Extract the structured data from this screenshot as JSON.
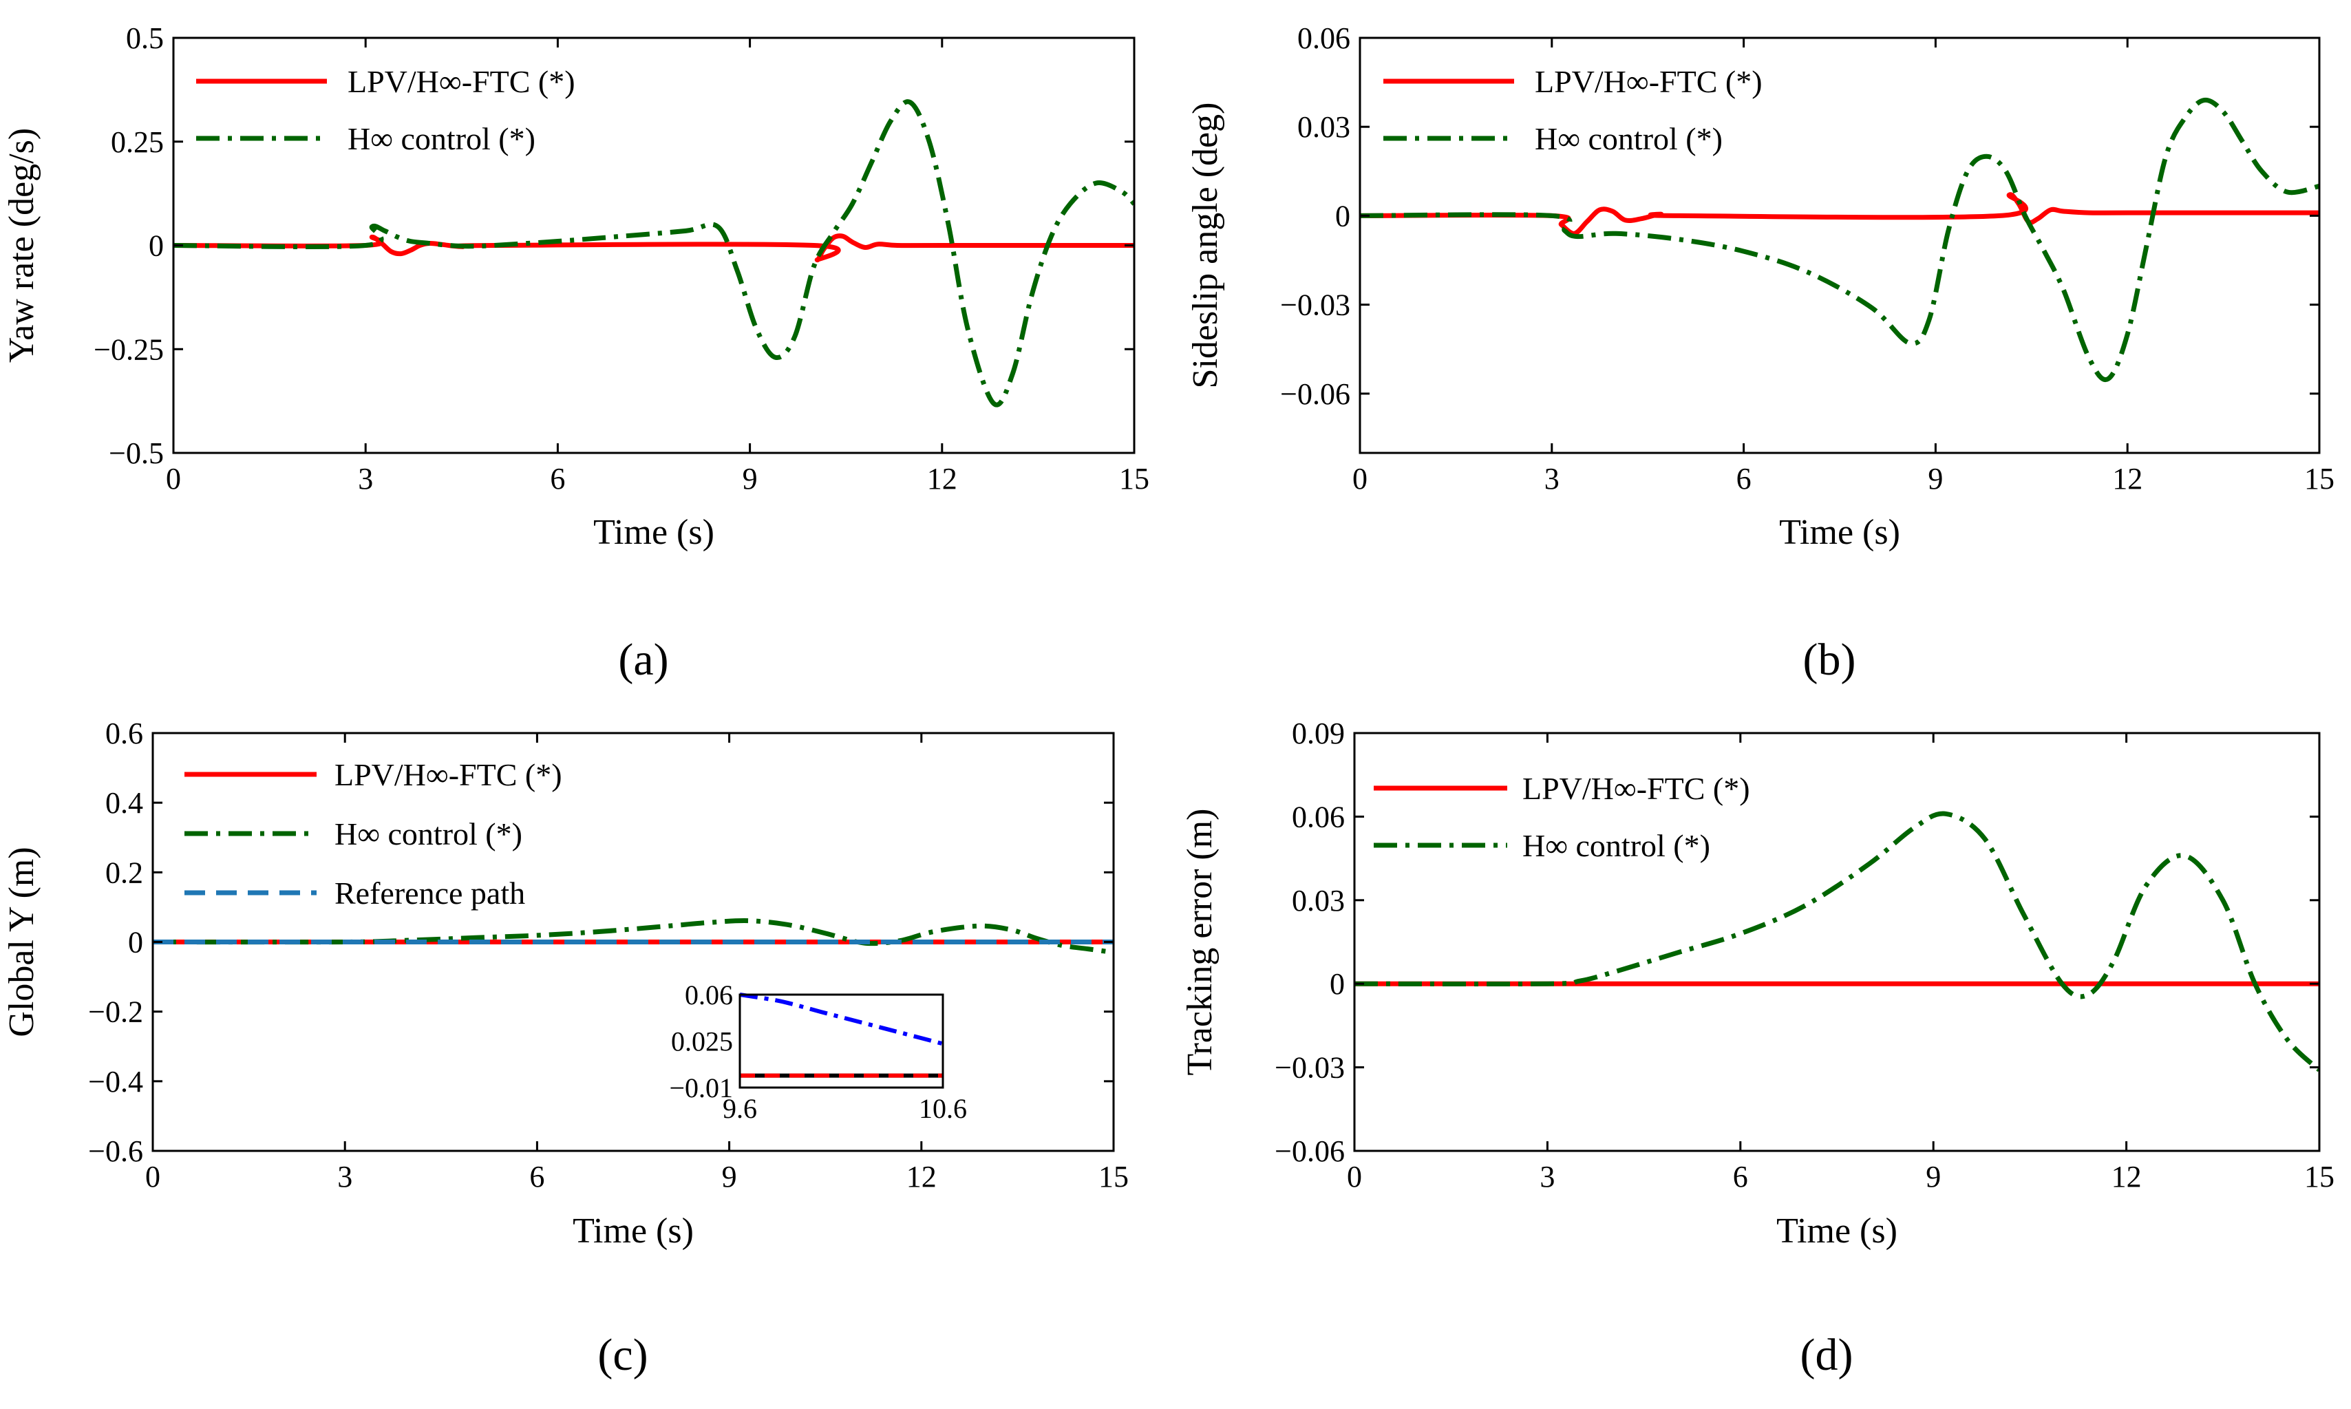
{
  "figure": {
    "colors": {
      "ftc": "#ff0000",
      "hinf": "#006400",
      "ref": "#1f77b4",
      "inset_blue": "#0000ff",
      "inset_black": "#000000"
    },
    "legend_labels": {
      "ftc": "LPV/H∞-FTC (*)",
      "hinf": "H∞ control (*)",
      "ref": "Reference path"
    }
  },
  "chart_data": [
    {
      "id": "a",
      "panel_label": "(a)",
      "type": "line",
      "title": "",
      "xlabel": "Time (s)",
      "ylabel": "Yaw rate (deg/s)",
      "xlim": [
        0,
        15
      ],
      "ylim": [
        -0.5,
        0.5
      ],
      "xticks": [
        0,
        3,
        6,
        9,
        12,
        15
      ],
      "yticks": [
        -0.5,
        -0.25,
        0,
        0.25,
        0.5
      ],
      "xtick_labels": [
        "0",
        "3",
        "6",
        "9",
        "12",
        "15"
      ],
      "ytick_labels": [
        "−0.5",
        "−0.25",
        "0",
        "0.25",
        "0.5"
      ],
      "legend": [
        "LPV/H∞-FTC (*)",
        "H∞ control (*)"
      ],
      "series": [
        {
          "name": "LPV/H∞-FTC (*)",
          "key": "ftc",
          "style": "solid",
          "x": [
            0,
            3.0,
            3.1,
            3.25,
            3.4,
            3.55,
            3.7,
            3.85,
            4.0,
            4.2,
            4.5,
            5.0,
            10.0,
            10.05,
            10.15,
            10.3,
            10.45,
            10.6,
            10.8,
            11.0,
            11.3,
            12,
            15
          ],
          "y": [
            0,
            0,
            0.02,
            0.005,
            -0.015,
            -0.02,
            -0.012,
            0.0,
            0.005,
            0.002,
            -0.003,
            0,
            0,
            -0.035,
            -0.01,
            0.018,
            0.022,
            0.008,
            -0.005,
            0.003,
            0,
            0,
            0
          ]
        },
        {
          "name": "H∞ control (*)",
          "key": "hinf",
          "style": "dashdot",
          "x": [
            0,
            3.0,
            3.1,
            3.3,
            3.5,
            3.7,
            4.0,
            4.3,
            4.6,
            5.0,
            6.0,
            7.0,
            8.0,
            8.5,
            8.8,
            9.1,
            9.4,
            9.7,
            10.0,
            10.3,
            10.6,
            10.9,
            11.2,
            11.5,
            11.8,
            12.1,
            12.4,
            12.8,
            13.1,
            13.4,
            13.7,
            14.0,
            14.4,
            14.8,
            15.0
          ],
          "y": [
            0,
            0,
            0.045,
            0.035,
            0.02,
            0.01,
            0.005,
            0.0,
            -0.002,
            0.0,
            0.01,
            0.022,
            0.035,
            0.045,
            -0.06,
            -0.2,
            -0.27,
            -0.22,
            -0.05,
            0.03,
            0.1,
            0.2,
            0.3,
            0.345,
            0.25,
            0.05,
            -0.2,
            -0.38,
            -0.31,
            -0.12,
            0.02,
            0.1,
            0.15,
            0.13,
            0.1
          ]
        }
      ]
    },
    {
      "id": "b",
      "panel_label": "(b)",
      "type": "line",
      "title": "",
      "xlabel": "Time (s)",
      "ylabel": "Sideslip angle (deg)",
      "xlim": [
        0,
        15
      ],
      "ylim": [
        -0.08,
        0.06
      ],
      "xticks": [
        0,
        3,
        6,
        9,
        12,
        15
      ],
      "yticks": [
        -0.06,
        -0.03,
        0,
        0.03,
        0.06
      ],
      "xtick_labels": [
        "0",
        "3",
        "6",
        "9",
        "12",
        "15"
      ],
      "ytick_labels": [
        "−0.06",
        "−0.03",
        "0",
        "0.03",
        "0.06"
      ],
      "legend": [
        "LPV/H∞-FTC (*)",
        "H∞ control (*)"
      ],
      "series": [
        {
          "name": "LPV/H∞-FTC (*)",
          "key": "ftc",
          "style": "solid",
          "x": [
            0,
            3.0,
            3.15,
            3.35,
            3.55,
            3.75,
            3.95,
            4.15,
            4.4,
            4.7,
            5.0,
            10.0,
            10.15,
            10.3,
            10.45,
            10.6,
            10.8,
            11.0,
            11.4,
            12,
            15
          ],
          "y": [
            0,
            0,
            -0.003,
            -0.006,
            -0.002,
            0.002,
            0.0015,
            -0.0015,
            -0.001,
            0.0005,
            0,
            0,
            0.007,
            0.004,
            -0.002,
            -0.001,
            0.002,
            0.0015,
            0.001,
            0.001,
            0.001
          ]
        },
        {
          "name": "H∞ control (*)",
          "key": "hinf",
          "style": "dashdot",
          "x": [
            0,
            3.0,
            3.2,
            3.4,
            4.0,
            5.0,
            6.0,
            7.0,
            8.0,
            8.6,
            8.9,
            9.2,
            9.5,
            9.8,
            10.1,
            10.4,
            10.7,
            11.0,
            11.4,
            11.7,
            12.0,
            12.3,
            12.6,
            12.9,
            13.2,
            13.5,
            13.8,
            14.1,
            14.5,
            15.0
          ],
          "y": [
            0,
            0,
            -0.005,
            -0.007,
            -0.006,
            -0.008,
            -0.012,
            -0.019,
            -0.031,
            -0.043,
            -0.035,
            -0.005,
            0.015,
            0.02,
            0.015,
            0.0,
            -0.012,
            -0.025,
            -0.048,
            -0.055,
            -0.04,
            -0.01,
            0.02,
            0.033,
            0.039,
            0.035,
            0.025,
            0.015,
            0.008,
            0.01
          ]
        }
      ]
    },
    {
      "id": "c",
      "panel_label": "(c)",
      "type": "line",
      "title": "",
      "xlabel": "Time (s)",
      "ylabel": "Global Y (m)",
      "xlim": [
        0,
        15
      ],
      "ylim": [
        -0.6,
        0.6
      ],
      "xticks": [
        0,
        3,
        6,
        9,
        12,
        15
      ],
      "yticks": [
        -0.6,
        -0.4,
        -0.2,
        0,
        0.2,
        0.4,
        0.6
      ],
      "xtick_labels": [
        "0",
        "3",
        "6",
        "9",
        "12",
        "15"
      ],
      "ytick_labels": [
        "−0.6",
        "−0.4",
        "−0.2",
        "0",
        "0.2",
        "0.4",
        "0.6"
      ],
      "legend": [
        "LPV/H∞-FTC (*)",
        "H∞ control (*)",
        "Reference path"
      ],
      "series": [
        {
          "name": "LPV/H∞-FTC (*)",
          "key": "ftc",
          "style": "solid",
          "x": [
            0,
            15
          ],
          "y": [
            0,
            0
          ]
        },
        {
          "name": "H∞ control (*)",
          "key": "hinf",
          "style": "dashdot",
          "x": [
            0,
            3.0,
            4.0,
            5.0,
            6.0,
            7.0,
            8.0,
            8.7,
            9.3,
            9.9,
            10.5,
            11.0,
            11.3,
            11.7,
            12.2,
            12.9,
            13.4,
            13.8,
            14.2,
            14.6,
            15.0
          ],
          "y": [
            0,
            0,
            0.005,
            0.012,
            0.019,
            0.03,
            0.045,
            0.056,
            0.061,
            0.05,
            0.025,
            0.0,
            -0.004,
            0.005,
            0.03,
            0.046,
            0.035,
            0.01,
            -0.01,
            -0.02,
            -0.03
          ]
        },
        {
          "name": "Reference path",
          "key": "ref",
          "style": "dashed",
          "x": [
            0,
            15
          ],
          "y": [
            0,
            0
          ]
        }
      ],
      "inset": {
        "xlim": [
          9.6,
          10.6
        ],
        "ylim": [
          -0.01,
          0.06
        ],
        "xtick_labels": [
          "9.6",
          "10.6"
        ],
        "ytick_labels": [
          "0.06",
          "0.025",
          "−0.01"
        ],
        "yticks": [
          0.06,
          0.025,
          -0.01
        ],
        "series": [
          {
            "key": "inset_blue",
            "style": "dashdot",
            "x": [
              9.6,
              9.8,
              10.0,
              10.2,
              10.4,
              10.6
            ],
            "y": [
              0.06,
              0.055,
              0.047,
              0.039,
              0.031,
              0.023
            ]
          },
          {
            "key": "inset_black",
            "style": "solid",
            "x": [
              9.6,
              10.6
            ],
            "y": [
              -0.001,
              -0.001
            ]
          },
          {
            "key": "ftc",
            "style": "dashed",
            "x": [
              9.6,
              10.6
            ],
            "y": [
              -0.001,
              -0.001
            ]
          }
        ]
      }
    },
    {
      "id": "d",
      "panel_label": "(d)",
      "type": "line",
      "title": "",
      "xlabel": "Time (s)",
      "ylabel": "Tracking error (m)",
      "xlim": [
        0,
        15
      ],
      "ylim": [
        -0.06,
        0.09
      ],
      "xticks": [
        0,
        3,
        6,
        9,
        12,
        15
      ],
      "yticks": [
        -0.06,
        -0.03,
        0,
        0.03,
        0.06,
        0.09
      ],
      "xtick_labels": [
        "0",
        "3",
        "6",
        "9",
        "12",
        "15"
      ],
      "ytick_labels": [
        "−0.06",
        "−0.03",
        "0",
        "0.03",
        "0.06",
        "0.09"
      ],
      "legend": [
        "LPV/H∞-FTC (*)",
        "H∞ control (*)"
      ],
      "series": [
        {
          "name": "LPV/H∞-FTC (*)",
          "key": "ftc",
          "style": "solid",
          "x": [
            0,
            15
          ],
          "y": [
            0,
            0
          ]
        },
        {
          "name": "H∞ control (*)",
          "key": "hinf",
          "style": "dashdot",
          "x": [
            0,
            3.0,
            3.5,
            4.0,
            5.0,
            6.0,
            7.0,
            8.0,
            8.7,
            9.2,
            9.8,
            10.4,
            11.0,
            11.4,
            11.8,
            12.3,
            12.9,
            13.5,
            14.0,
            14.5,
            15.0
          ],
          "y": [
            0,
            0,
            0.001,
            0.004,
            0.011,
            0.018,
            0.028,
            0.043,
            0.056,
            0.061,
            0.052,
            0.025,
            0.0,
            -0.004,
            0.008,
            0.035,
            0.046,
            0.03,
            0.0,
            -0.02,
            -0.031
          ]
        }
      ]
    }
  ]
}
